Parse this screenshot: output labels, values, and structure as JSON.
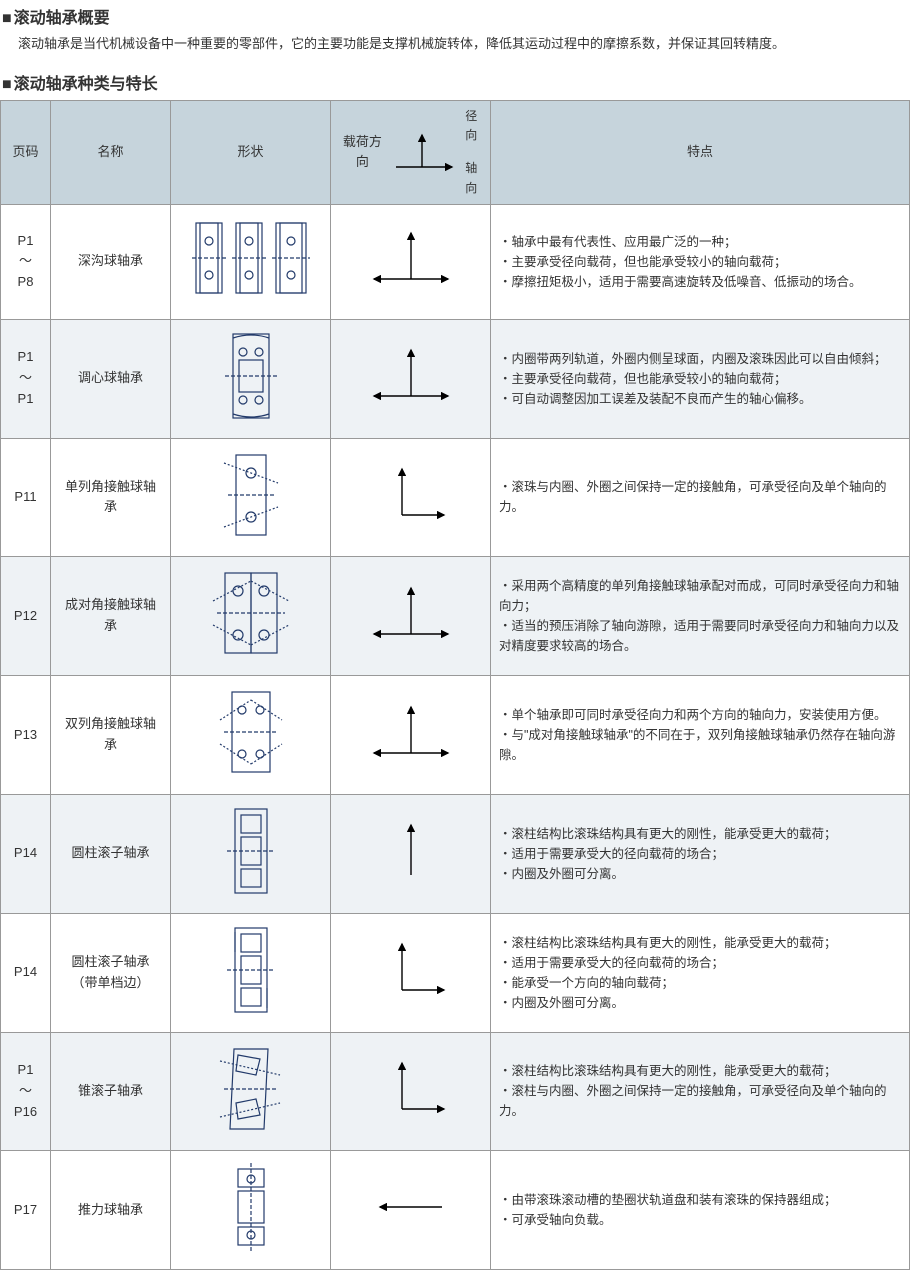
{
  "overview": {
    "title": "滚动轴承概要",
    "intro": "滚动轴承是当代机械设备中一种重要的零部件，它的主要功能是支撑机械旋转体，降低其运动过程中的摩擦系数，并保证其回转精度。"
  },
  "typesSection": {
    "title": "滚动轴承种类与特长"
  },
  "headers": {
    "page": "页码",
    "name": "名称",
    "shape": "形状",
    "load": "载荷方向",
    "load_radial": "径向",
    "load_axial": "轴向",
    "features": "特点"
  },
  "colors": {
    "header_bg": "#c6d4dc",
    "row_alt_bg": "#eef2f5",
    "border": "#999999",
    "shape_stroke": "#223a6a",
    "text": "#333333"
  },
  "rows": [
    {
      "page": "P1\n～\nP8",
      "name": "深沟球轴承",
      "shape_type": "deep-groove",
      "load_dir": "radial-both-axial",
      "features": "・轴承中最有代表性、应用最广泛的一种；\n・主要承受径向载荷，但也能承受较小的轴向载荷；\n・摩擦扭矩极小，适用于需要高速旋转及低噪音、低振动的场合。"
    },
    {
      "page": "P1\n～\nP1",
      "name": "调心球轴承",
      "shape_type": "self-aligning",
      "load_dir": "radial-both-axial",
      "features": "・内圈带两列轨道，外圈内侧呈球面，内圈及滚珠因此可以自由倾斜；\n・主要承受径向载荷，但也能承受较小的轴向载荷；\n・可自动调整因加工误差及装配不良而产生的轴心偏移。"
    },
    {
      "page": "P11",
      "name": "单列角接触球轴承",
      "shape_type": "angular-single",
      "load_dir": "radial-one-axial",
      "features": "・滚珠与内圈、外圈之间保持一定的接触角，可承受径向及单个轴向的力。"
    },
    {
      "page": "P12",
      "name": "成对角接触球轴承",
      "shape_type": "angular-pair",
      "load_dir": "radial-both-axial",
      "features": "・采用两个高精度的单列角接触球轴承配对而成，可同时承受径向力和轴向力；\n・适当的预压消除了轴向游隙，适用于需要同时承受径向力和轴向力以及对精度要求较高的场合。"
    },
    {
      "page": "P13",
      "name": "双列角接触球轴承",
      "shape_type": "angular-double",
      "load_dir": "radial-both-axial",
      "features": "・单个轴承即可同时承受径向力和两个方向的轴向力，安装使用方便。\n・与\"成对角接触球轴承\"的不同在于，双列角接触球轴承仍然存在轴向游隙。"
    },
    {
      "page": "P14",
      "name": "圆柱滚子轴承",
      "shape_type": "cylindrical",
      "load_dir": "radial-only",
      "features": "・滚柱结构比滚珠结构具有更大的刚性，能承受更大的载荷；\n・适用于需要承受大的径向载荷的场合；\n・内圈及外圈可分离。"
    },
    {
      "page": "P14",
      "name": "圆柱滚子轴承\n（带单档边）",
      "shape_type": "cylindrical-flange",
      "load_dir": "radial-one-axial",
      "features": "・滚柱结构比滚珠结构具有更大的刚性，能承受更大的载荷；\n・适用于需要承受大的径向载荷的场合；\n・能承受一个方向的轴向载荷；\n・内圈及外圈可分离。"
    },
    {
      "page": "P1\n～\nP16",
      "name": "锥滚子轴承",
      "shape_type": "tapered",
      "load_dir": "radial-one-axial",
      "features": "・滚柱结构比滚珠结构具有更大的刚性，能承受更大的载荷；\n・滚柱与内圈、外圈之间保持一定的接触角，可承受径向及单个轴向的力。"
    },
    {
      "page": "P17",
      "name": "推力球轴承",
      "shape_type": "thrust",
      "load_dir": "axial-only",
      "features": "・由带滚珠滚动槽的垫圈状轨道盘和装有滚珠的保持器组成；\n・可承受轴向负载。"
    }
  ]
}
